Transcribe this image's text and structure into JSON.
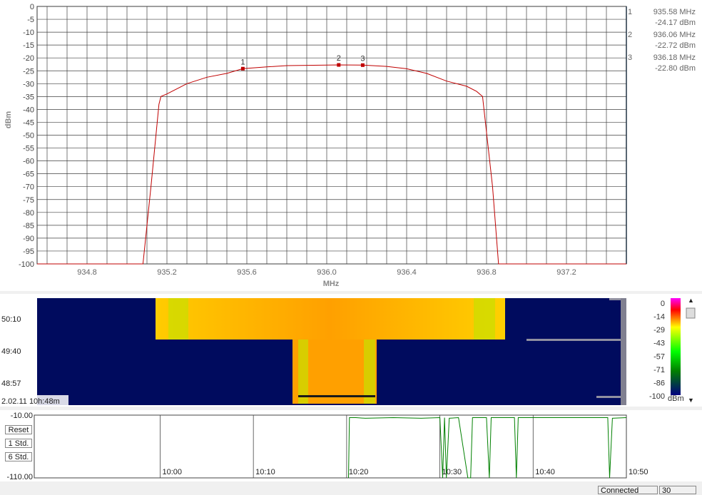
{
  "chart_data": [
    {
      "type": "line",
      "xlabel": "MHz",
      "ylabel": "dBm",
      "xlim": [
        934.55,
        937.5
      ],
      "ylim": [
        -100,
        0
      ],
      "x_ticks": [
        "934.8",
        "935.2",
        "935.6",
        "936.0",
        "936.4",
        "936.8",
        "937.2"
      ],
      "x_tick_values": [
        934.8,
        935.2,
        935.6,
        936.0,
        936.4,
        936.8,
        937.2
      ],
      "y_ticks": [
        "0",
        "-5",
        "-10",
        "-15",
        "-20",
        "-25",
        "-30",
        "-35",
        "-40",
        "-45",
        "-50",
        "-55",
        "-60",
        "-65",
        "-70",
        "-75",
        "-80",
        "-85",
        "-90",
        "-95",
        "-100"
      ],
      "grid": true,
      "series": [
        {
          "color": "#c00000",
          "x": [
            934.55,
            935.08,
            935.12,
            935.16,
            935.17,
            935.2,
            935.3,
            935.4,
            935.5,
            935.58,
            935.7,
            935.8,
            936.0,
            936.06,
            936.18,
            936.3,
            936.4,
            936.5,
            936.6,
            936.7,
            936.75,
            936.78,
            936.83,
            936.86,
            937.5
          ],
          "y": [
            -100,
            -100,
            -70,
            -38,
            -35,
            -34,
            -30,
            -27.5,
            -26,
            -24.17,
            -23.5,
            -23,
            -22.8,
            -22.72,
            -22.8,
            -23.3,
            -24.2,
            -26,
            -29,
            -31,
            -33,
            -35,
            -70,
            -100,
            -100
          ]
        }
      ],
      "markers": [
        {
          "label": "1",
          "x": 935.58,
          "y": -24.17,
          "freq": "935.58 MHz",
          "level": "-24.17 dBm"
        },
        {
          "label": "2",
          "x": 936.06,
          "y": -22.72,
          "freq": "936.06 MHz",
          "level": "-22.72 dBm"
        },
        {
          "label": "3",
          "x": 936.18,
          "y": -22.8,
          "freq": "936.18 MHz",
          "level": "-22.80 dBm"
        }
      ]
    },
    {
      "type": "heatmap",
      "y_tick_labels": [
        "50:10",
        "49:40",
        "48:57"
      ],
      "timestamp": "2.02.11 10h:48m",
      "colorbar_ticks": [
        "0",
        "-14",
        "-29",
        "-43",
        "-57",
        "-71",
        "-86",
        "-100"
      ],
      "colorbar_unit": "dBm",
      "colorscale": [
        "#ff00ff",
        "#ff0000",
        "#ffff00",
        "#00ff00",
        "#008000",
        "#000080"
      ]
    },
    {
      "type": "line",
      "ylim": [
        -110,
        -10
      ],
      "y_tick_labels": [
        "-10.00",
        "-110.00"
      ],
      "x_tick_labels": [
        "10:00",
        "10:10",
        "10:20",
        "10:30",
        "10:40",
        "10:50"
      ],
      "series": [
        {
          "color": "#008000",
          "x": [
            "10:20.2",
            "10:20.3",
            "10:21",
            "10:22",
            "10:25",
            "10:28",
            "10:30",
            "10:30.3",
            "10:30.5",
            "10:30.7",
            "10:31",
            "10:32",
            "10:33",
            "10:33.3",
            "10:33.5",
            "10:35",
            "10:35.3",
            "10:35.5",
            "10:38",
            "10:38.2",
            "10:38.4",
            "10:42",
            "10:46",
            "10:48",
            "10:48.2",
            "10:48.5",
            "10:50"
          ],
          "y": [
            -110,
            -14,
            -14,
            -15,
            -14,
            -15,
            -14,
            -110,
            -14,
            -110,
            -15,
            -14,
            -110,
            -110,
            -14,
            -14,
            -110,
            -14,
            -14,
            -110,
            -14,
            -14,
            -14,
            -14,
            -110,
            -15,
            -14
          ]
        }
      ]
    }
  ],
  "timeline": {
    "buttons": [
      "Reset",
      "1 Std.",
      "6 Std."
    ]
  },
  "status": {
    "connection": "Connected",
    "value": "30"
  },
  "colors": {
    "trace": "#c00000",
    "grid": "#404040",
    "axis_text": "#808080",
    "timeline_trace": "#008000",
    "waterfall_bg": "#000b5e"
  }
}
